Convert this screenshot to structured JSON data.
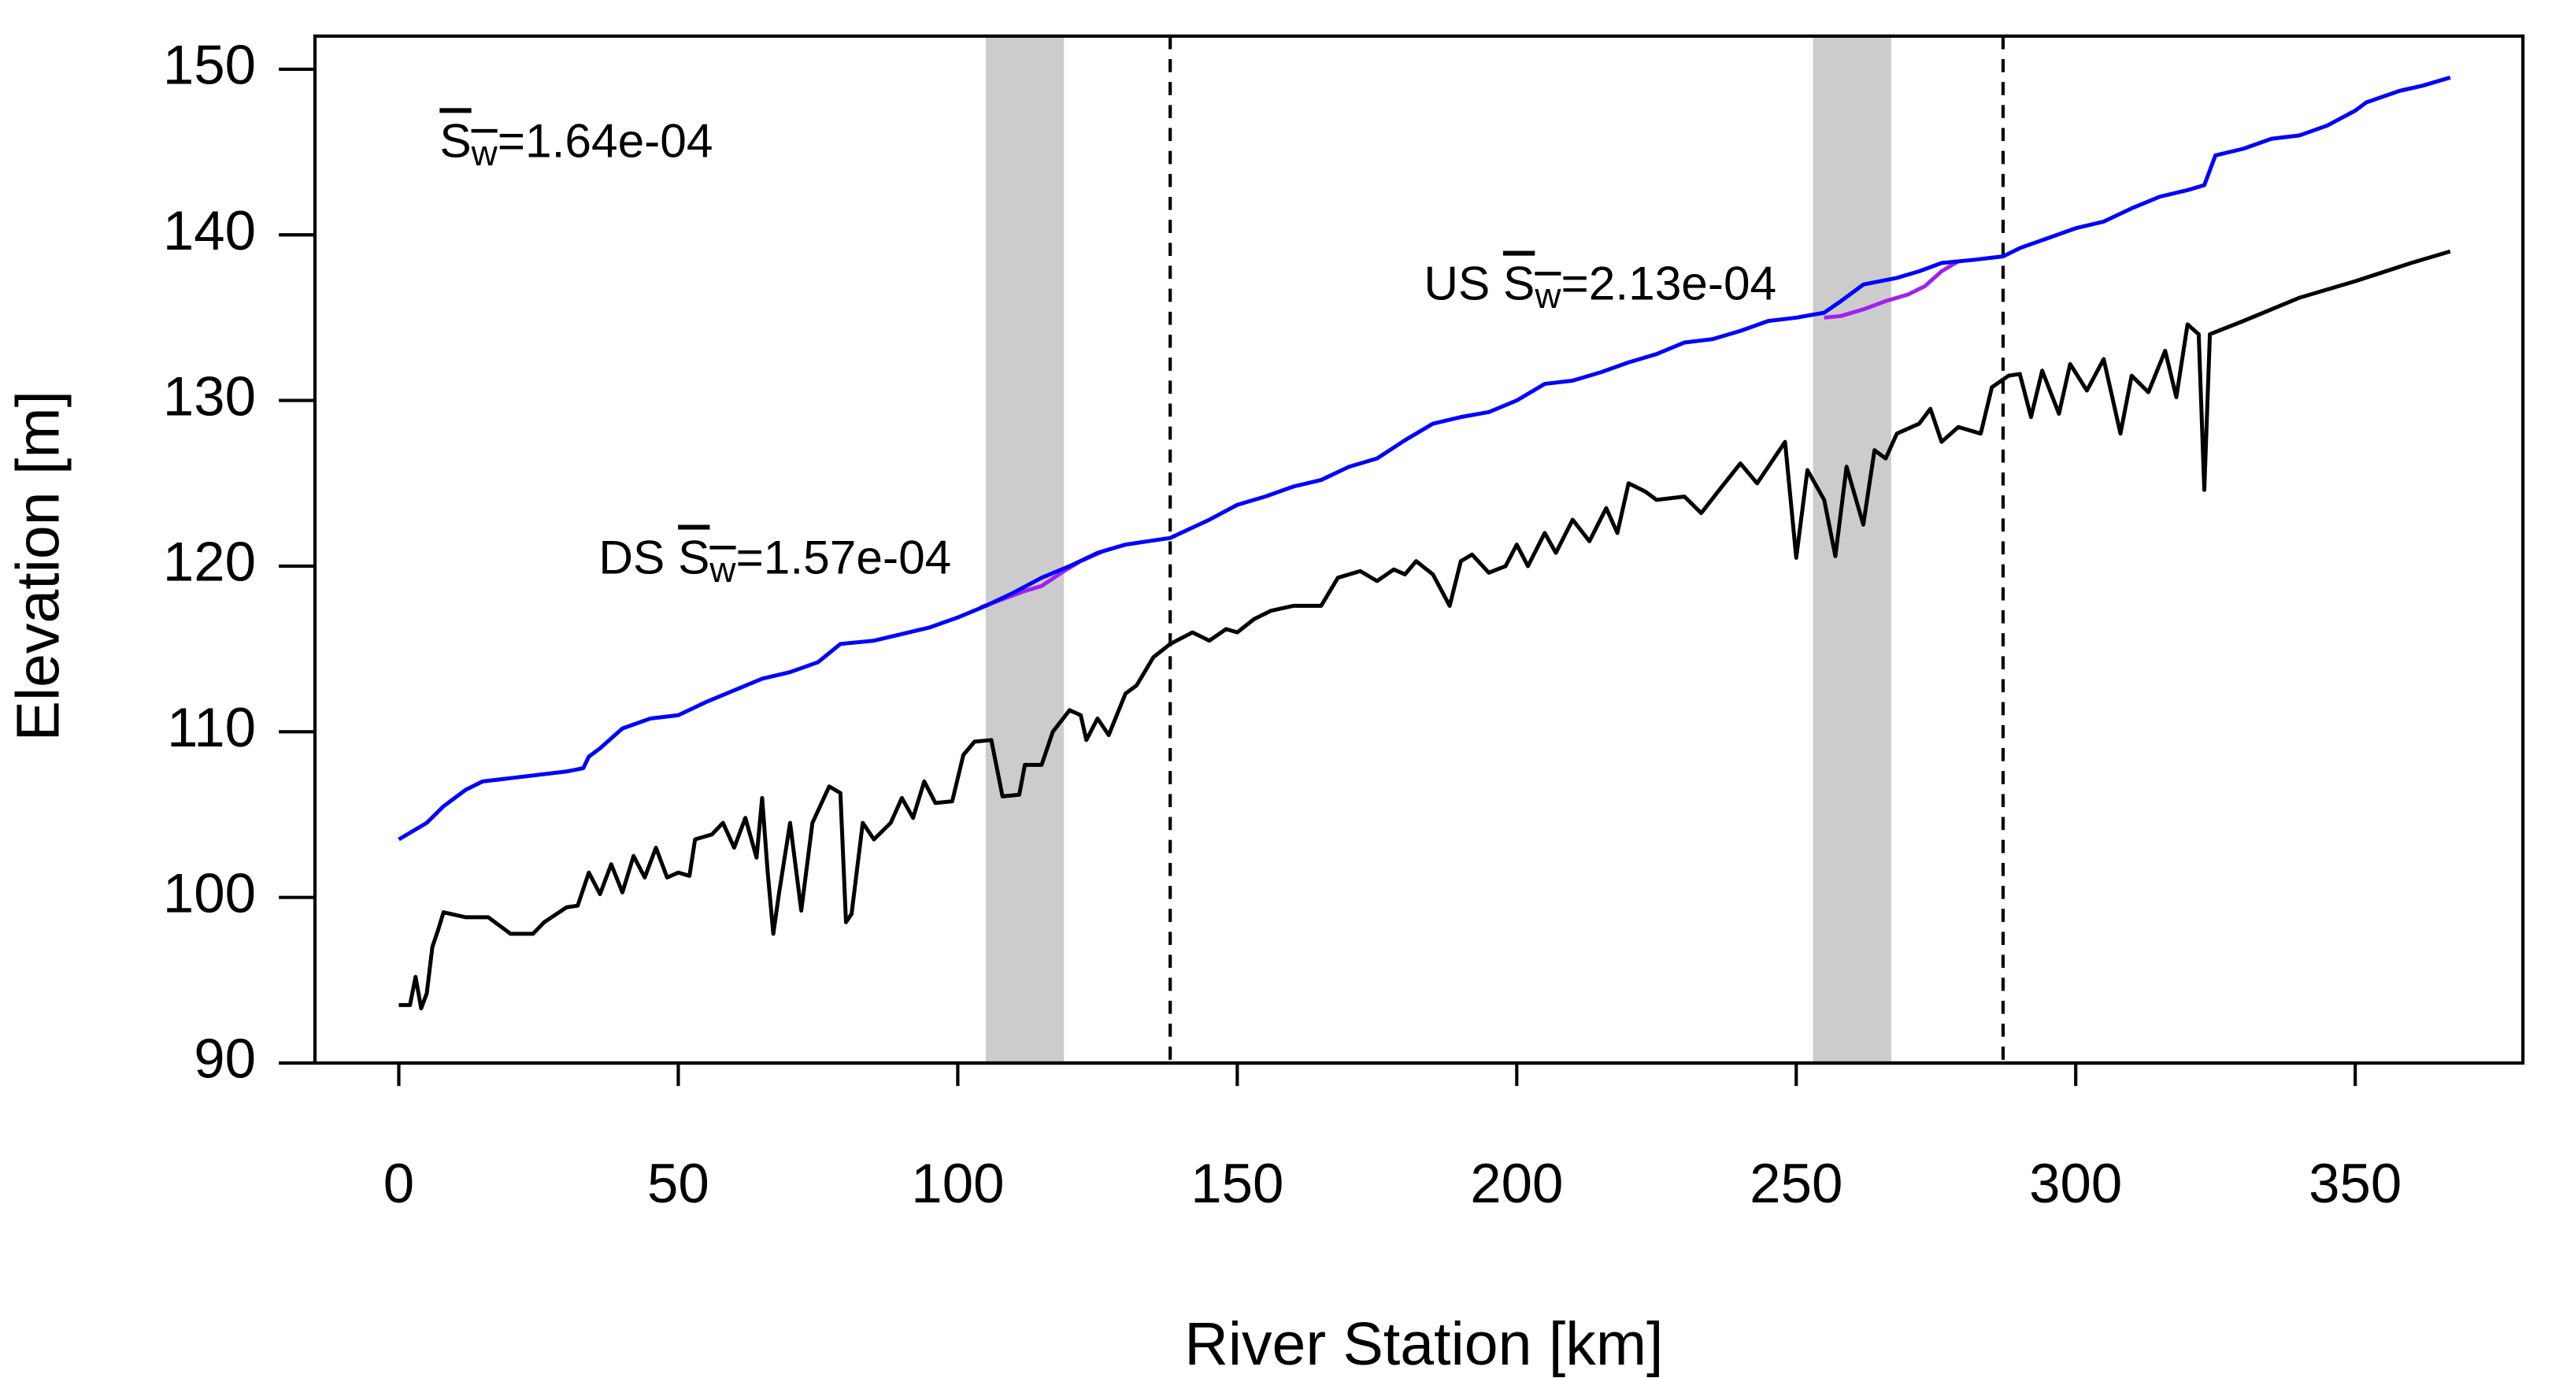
{
  "chart_data": {
    "type": "line",
    "xlabel": "River Station [km]",
    "ylabel": "Elevation [m]",
    "xlim": [
      -15,
      380
    ],
    "ylim": [
      90,
      152
    ],
    "xticks": [
      0,
      50,
      100,
      150,
      200,
      250,
      300,
      350
    ],
    "yticks": [
      90,
      100,
      110,
      120,
      130,
      140,
      150
    ],
    "shaded_regions": [
      [
        105,
        119
      ],
      [
        253,
        267
      ]
    ],
    "shade_color": "#cccccc",
    "vlines": [
      138,
      287
    ],
    "annotations": [
      {
        "symbol": "S",
        "subscript": "w",
        "text": "=1.64e-04"
      },
      {
        "prefix": "US",
        "symbol": "S",
        "subscript": "w",
        "text": "=2.13e-04"
      },
      {
        "prefix": "DS",
        "symbol": "S",
        "subscript": "w",
        "text": "=1.57e-04"
      }
    ],
    "series": [
      {
        "color": "#a020f0",
        "x": [
          104,
          108,
          112,
          115,
          119,
          122,
          126,
          130,
          252,
          255,
          258,
          262,
          266,
          270,
          273,
          276,
          279
        ],
        "values": [
          117.5,
          118.0,
          118.5,
          118.8,
          119.7,
          120.3,
          120.9,
          121.3,
          null,
          135.0,
          135.1,
          135.5,
          136.0,
          136.4,
          136.9,
          137.8,
          138.4
        ]
      },
      {
        "color": "#0000ff",
        "x": [
          0,
          5,
          8,
          12,
          15,
          20,
          30,
          33,
          34,
          36,
          40,
          45,
          50,
          55,
          60,
          65,
          70,
          75,
          79,
          85,
          90,
          95,
          100,
          105,
          110,
          115,
          120,
          125,
          130,
          138,
          145,
          150,
          155,
          160,
          165,
          170,
          175,
          180,
          185,
          190,
          195,
          200,
          205,
          210,
          215,
          220,
          225,
          230,
          235,
          240,
          245,
          250,
          255,
          258,
          262,
          268,
          272,
          276,
          282,
          287,
          290,
          295,
          300,
          305,
          310,
          315,
          320,
          323,
          325,
          330,
          335,
          340,
          345,
          350,
          352,
          358,
          362,
          367
        ],
        "values": [
          103.5,
          104.5,
          105.5,
          106.5,
          107.0,
          107.2,
          107.6,
          107.8,
          108.5,
          109.0,
          110.2,
          110.8,
          111.0,
          111.8,
          112.5,
          113.2,
          113.6,
          114.2,
          115.3,
          115.5,
          115.9,
          116.3,
          116.9,
          117.6,
          118.4,
          119.3,
          120.0,
          120.8,
          121.3,
          121.7,
          122.8,
          123.7,
          124.2,
          124.8,
          125.2,
          126.0,
          126.5,
          127.6,
          128.6,
          129.0,
          129.3,
          130.0,
          131.0,
          131.2,
          131.7,
          132.3,
          132.8,
          133.5,
          133.7,
          134.2,
          134.8,
          135.0,
          135.3,
          136.0,
          137.0,
          137.4,
          137.8,
          138.3,
          138.5,
          138.7,
          139.2,
          139.8,
          140.4,
          140.8,
          141.6,
          142.3,
          142.7,
          143.0,
          144.8,
          145.2,
          145.8,
          146.0,
          146.6,
          147.5,
          148.0,
          148.7,
          149.0,
          149.5
        ]
      },
      {
        "color": "#000000",
        "x": [
          0,
          2,
          3,
          4,
          5,
          6,
          7,
          8,
          12,
          16,
          18,
          20,
          24,
          26,
          30,
          32,
          34,
          36,
          38,
          40,
          42,
          44,
          46,
          48,
          50,
          52,
          53,
          56,
          58,
          60,
          62,
          64,
          65,
          66,
          67,
          68,
          70,
          72,
          74,
          77,
          79,
          80,
          81,
          83,
          85,
          88,
          90,
          92,
          94,
          96,
          99,
          101,
          103,
          106,
          108,
          111,
          112,
          115,
          117,
          120,
          122,
          123,
          125,
          127,
          130,
          132,
          135,
          138,
          142,
          145,
          148,
          150,
          153,
          156,
          160,
          165,
          168,
          172,
          175,
          178,
          180,
          182,
          185,
          188,
          190,
          192,
          195,
          198,
          200,
          202,
          205,
          207,
          210,
          213,
          216,
          218,
          220,
          223,
          225,
          230,
          233,
          236,
          240,
          243,
          245,
          248,
          250,
          252,
          255,
          257,
          259,
          262,
          264,
          266,
          268,
          272,
          274,
          276,
          279,
          283,
          285,
          288,
          290,
          292,
          294,
          297,
          299,
          302,
          305,
          308,
          310,
          313,
          316,
          318,
          320,
          322,
          323,
          324,
          330,
          340,
          350,
          360,
          367
        ],
        "values": [
          93.5,
          93.5,
          95.2,
          93.3,
          94.2,
          97.0,
          98.0,
          99.1,
          98.8,
          98.8,
          98.3,
          97.8,
          97.8,
          98.5,
          99.4,
          99.5,
          101.5,
          100.2,
          102.0,
          100.3,
          102.5,
          101.2,
          103.0,
          101.2,
          101.5,
          101.3,
          103.5,
          103.8,
          104.5,
          103.0,
          104.8,
          102.4,
          106.0,
          101.5,
          97.8,
          100.2,
          104.5,
          99.2,
          104.5,
          106.7,
          106.3,
          98.5,
          99.0,
          104.5,
          103.5,
          104.5,
          106.0,
          104.8,
          107.0,
          105.7,
          105.8,
          108.6,
          109.4,
          109.5,
          106.1,
          106.2,
          108.0,
          108.0,
          110.0,
          111.3,
          111.0,
          109.5,
          110.8,
          109.8,
          112.3,
          112.8,
          114.5,
          115.3,
          116.0,
          115.5,
          116.2,
          116.0,
          116.8,
          117.3,
          117.6,
          117.6,
          119.3,
          119.7,
          119.1,
          119.8,
          119.5,
          120.3,
          119.5,
          117.6,
          120.3,
          120.7,
          119.6,
          120.0,
          121.3,
          120.0,
          122.0,
          120.8,
          122.8,
          121.5,
          123.5,
          122.0,
          125.0,
          124.5,
          124.0,
          124.2,
          123.2,
          124.5,
          126.2,
          125.0,
          126.0,
          127.5,
          120.5,
          125.8,
          124.0,
          120.6,
          126.0,
          122.5,
          127.0,
          126.5,
          128.0,
          128.6,
          129.5,
          127.5,
          128.4,
          128.0,
          130.8,
          131.5,
          131.6,
          129.0,
          131.8,
          129.2,
          132.2,
          130.6,
          132.5,
          128.0,
          131.5,
          130.5,
          133.0,
          130.2,
          134.6,
          134.0,
          124.6,
          134.0,
          134.8,
          136.2,
          137.2,
          138.3,
          139.0
        ]
      }
    ]
  }
}
